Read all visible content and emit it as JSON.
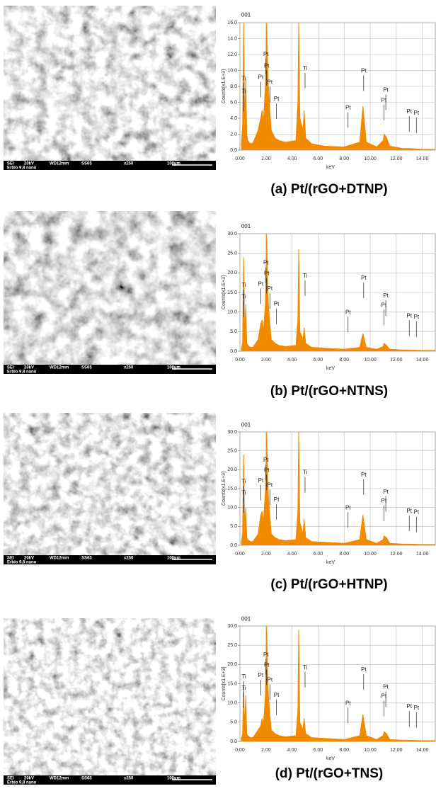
{
  "chart_data": [
    {
      "type": "line",
      "title": "(a) Pt/(rGO+DTNP)",
      "x_label": "keV",
      "y_label": "Counts[x1.E+3]",
      "annotations": [
        "001",
        "Ti",
        "Ti",
        "Pt",
        "Pt",
        "Pt",
        "Pt",
        "Pt",
        "Ti",
        "Pt",
        "Pt",
        "Pt",
        "Pt",
        "Pt",
        "Pt"
      ],
      "color": "#f28a00",
      "grid": true,
      "xlim": [
        0,
        15
      ],
      "ylim": [
        0,
        16
      ],
      "xticks": [
        {
          "value": 0,
          "label": "0.00"
        },
        {
          "value": 2,
          "label": "2.00"
        },
        {
          "value": 4,
          "label": "4.00"
        },
        {
          "value": 6,
          "label": "6.00"
        },
        {
          "value": 8,
          "label": "8.00"
        },
        {
          "value": 10,
          "label": "10.00"
        },
        {
          "value": 12,
          "label": "12.00"
        },
        {
          "value": 14,
          "label": "14.00"
        }
      ],
      "yticks": [
        {
          "value": 0,
          "label": "0.0"
        },
        {
          "value": 2,
          "label": "2.0"
        },
        {
          "value": 4,
          "label": "4.0"
        },
        {
          "value": 6,
          "label": "6.0"
        },
        {
          "value": 8,
          "label": "8.0"
        },
        {
          "value": 10,
          "label": "10.0"
        },
        {
          "value": 12,
          "label": "12.0"
        },
        {
          "value": 14,
          "label": "14.0"
        },
        {
          "value": 16,
          "label": "16.0"
        }
      ],
      "x": [
        0.1,
        0.2,
        0.28,
        0.36,
        0.45,
        0.52,
        0.6,
        0.8,
        1.0,
        1.4,
        1.6,
        1.7,
        1.8,
        1.95,
        2.05,
        2.15,
        2.25,
        2.4,
        2.7,
        3.0,
        3.5,
        4.3,
        4.45,
        4.51,
        4.6,
        4.85,
        4.93,
        5.05,
        5.5,
        6.5,
        8.0,
        9.2,
        9.44,
        9.7,
        10.5,
        11.0,
        11.07,
        11.25,
        11.5,
        12.5,
        13.0,
        14.0,
        15.0
      ],
      "values": [
        0.5,
        3,
        16,
        4,
        9,
        2,
        1.2,
        0.8,
        0.9,
        2.5,
        4,
        5,
        3.5,
        8,
        16,
        9,
        6,
        2.5,
        1.5,
        1.2,
        1.0,
        1.2,
        6,
        16,
        4,
        2.5,
        5,
        1.5,
        0.8,
        0.5,
        0.4,
        1,
        5.5,
        1,
        0.4,
        1.2,
        2,
        1.6,
        0.5,
        0.2,
        0.2,
        0.1,
        0.1
      ]
    },
    {
      "type": "line",
      "title": "(b) Pt/(rGO+NTNS)",
      "x_label": "keV",
      "y_label": "Counts[x1.E+3]",
      "annotations": [
        "001",
        "Ti",
        "Ti",
        "Pt",
        "Pt",
        "Pt",
        "Pt",
        "Pt",
        "Ti",
        "Pt",
        "Pt",
        "Pt",
        "Pt",
        "Pt",
        "Pt"
      ],
      "color": "#f28a00",
      "grid": true,
      "xlim": [
        0,
        15
      ],
      "ylim": [
        0,
        30
      ],
      "xticks": [
        {
          "value": 0,
          "label": "0.00"
        },
        {
          "value": 2,
          "label": "2.00"
        },
        {
          "value": 4,
          "label": "4.00"
        },
        {
          "value": 6,
          "label": "6.00"
        },
        {
          "value": 8,
          "label": "8.00"
        },
        {
          "value": 10,
          "label": "10.00"
        },
        {
          "value": 12,
          "label": "12.00"
        },
        {
          "value": 14,
          "label": "14.00"
        }
      ],
      "yticks": [
        {
          "value": 0,
          "label": "0.0"
        },
        {
          "value": 5,
          "label": "5.0"
        },
        {
          "value": 10,
          "label": "10.0"
        },
        {
          "value": 15,
          "label": "15.0"
        },
        {
          "value": 20,
          "label": "20.0"
        },
        {
          "value": 25,
          "label": "25.0"
        },
        {
          "value": 30,
          "label": "30.0"
        }
      ],
      "x": [
        0.1,
        0.2,
        0.28,
        0.36,
        0.45,
        0.52,
        0.6,
        0.8,
        1.0,
        1.4,
        1.6,
        1.7,
        1.8,
        1.95,
        2.05,
        2.15,
        2.25,
        2.4,
        2.7,
        3.0,
        3.5,
        4.3,
        4.45,
        4.51,
        4.6,
        4.85,
        4.93,
        5.05,
        5.5,
        6.5,
        8.0,
        9.2,
        9.44,
        9.7,
        10.5,
        11.0,
        11.07,
        11.25,
        11.5,
        12.5,
        13.0,
        14.0,
        15.0
      ],
      "values": [
        0.5,
        2,
        24,
        5,
        12,
        2,
        1.5,
        1,
        1,
        3,
        7,
        8,
        5,
        12,
        30,
        14,
        9,
        3,
        2,
        1.5,
        1.2,
        1.5,
        8,
        26,
        5,
        3,
        6,
        2,
        1,
        0.8,
        0.5,
        1,
        4.5,
        1,
        0.5,
        1.2,
        2,
        1.5,
        0.5,
        0.3,
        0.3,
        0.2,
        0.2
      ]
    },
    {
      "type": "line",
      "title": "(c) Pt/(rGO+HTNP)",
      "x_label": "keV",
      "y_label": "Counts[x1.E+3]",
      "annotations": [
        "001",
        "Ti",
        "Ti",
        "Pt",
        "Pt",
        "Pt",
        "Pt",
        "Pt",
        "Ti",
        "Pt",
        "Pt",
        "Pt",
        "Pt",
        "Pt",
        "Pt"
      ],
      "color": "#f28a00",
      "grid": true,
      "xlim": [
        0,
        15
      ],
      "ylim": [
        0,
        30
      ],
      "xticks": [
        {
          "value": 0,
          "label": "0.00"
        },
        {
          "value": 2,
          "label": "2.00"
        },
        {
          "value": 4,
          "label": "4.00"
        },
        {
          "value": 6,
          "label": "6.00"
        },
        {
          "value": 8,
          "label": "8.00"
        },
        {
          "value": 10,
          "label": "10.00"
        },
        {
          "value": 12,
          "label": "12.00"
        },
        {
          "value": 14,
          "label": "14.00"
        }
      ],
      "yticks": [
        {
          "value": 0,
          "label": "0.0"
        },
        {
          "value": 5,
          "label": "5.0"
        },
        {
          "value": 10,
          "label": "10.0"
        },
        {
          "value": 15,
          "label": "15.0"
        },
        {
          "value": 20,
          "label": "20.0"
        },
        {
          "value": 25,
          "label": "25.0"
        },
        {
          "value": 30,
          "label": "30.0"
        }
      ],
      "x": [
        0.1,
        0.2,
        0.28,
        0.36,
        0.45,
        0.52,
        0.6,
        0.8,
        1.0,
        1.4,
        1.6,
        1.7,
        1.8,
        1.95,
        2.05,
        2.15,
        2.25,
        2.4,
        2.7,
        3.0,
        3.5,
        4.3,
        4.45,
        4.51,
        4.6,
        4.85,
        4.93,
        5.05,
        5.5,
        6.5,
        8.0,
        9.2,
        9.44,
        9.7,
        10.5,
        11.0,
        11.07,
        11.25,
        11.5,
        12.5,
        13.0,
        14.0,
        15.0
      ],
      "values": [
        0.5,
        3,
        24,
        5,
        10,
        2,
        1.5,
        1,
        1,
        3,
        8,
        9,
        6,
        14,
        30,
        15,
        10,
        3,
        2,
        1.5,
        1.2,
        1.5,
        9,
        30,
        6,
        3,
        7,
        2,
        1,
        0.8,
        0.5,
        1.5,
        8,
        1.5,
        0.5,
        1.5,
        2.5,
        2,
        0.5,
        0.3,
        0.3,
        0.2,
        0.2
      ]
    },
    {
      "type": "line",
      "title": "(d) Pt/(rGO+TNS)",
      "x_label": "keV",
      "y_label": "Counts[x1.E+3]",
      "annotations": [
        "001",
        "Ti",
        "Ti",
        "Pt",
        "Pt",
        "Pt",
        "Pt",
        "Pt",
        "Ti",
        "Pt",
        "Pt",
        "Pt",
        "Pt",
        "Pt",
        "Pt"
      ],
      "color": "#f28a00",
      "grid": true,
      "xlim": [
        0,
        15
      ],
      "ylim": [
        0,
        30
      ],
      "xticks": [
        {
          "value": 0,
          "label": "0.00"
        },
        {
          "value": 2,
          "label": "2.00"
        },
        {
          "value": 4,
          "label": "4.00"
        },
        {
          "value": 6,
          "label": "6.00"
        },
        {
          "value": 8,
          "label": "8.00"
        },
        {
          "value": 10,
          "label": "10.00"
        },
        {
          "value": 12,
          "label": "12.00"
        },
        {
          "value": 14,
          "label": "14.00"
        }
      ],
      "yticks": [
        {
          "value": 0,
          "label": "0.0"
        },
        {
          "value": 5,
          "label": "5.0"
        },
        {
          "value": 10,
          "label": "10.0"
        },
        {
          "value": 15,
          "label": "15.0"
        },
        {
          "value": 20,
          "label": "20.0"
        },
        {
          "value": 25,
          "label": "25.0"
        },
        {
          "value": 30,
          "label": "30.0"
        }
      ],
      "x": [
        0.1,
        0.2,
        0.28,
        0.36,
        0.45,
        0.52,
        0.6,
        0.8,
        1.0,
        1.4,
        1.6,
        1.7,
        1.8,
        1.95,
        2.05,
        2.15,
        2.25,
        2.4,
        2.7,
        3.0,
        3.5,
        4.3,
        4.45,
        4.51,
        4.6,
        4.85,
        4.93,
        5.05,
        5.5,
        6.5,
        8.0,
        9.2,
        9.44,
        9.7,
        10.5,
        11.0,
        11.07,
        11.25,
        11.5,
        12.5,
        13.0,
        14.0,
        15.0
      ],
      "values": [
        0.5,
        2,
        13,
        4,
        12,
        2,
        1.5,
        1,
        1,
        3,
        4,
        6,
        4,
        12,
        30,
        14,
        9,
        3,
        2,
        1.5,
        1.2,
        1.5,
        8,
        29,
        5,
        3,
        6,
        2,
        1,
        0.8,
        0.5,
        1.5,
        7,
        1.5,
        0.5,
        1.5,
        2.5,
        2,
        0.5,
        0.3,
        0.3,
        0.2,
        0.2
      ]
    }
  ],
  "sem_images": [
    {
      "labels": [
        "SEI",
        "20kV",
        "WD12mm",
        "SS65",
        "x250",
        "100µm",
        "Erbio 9,8 nano"
      ]
    },
    {
      "labels": [
        "SEI",
        "20kV",
        "WD12mm",
        "SS65",
        "x250",
        "100µm",
        "Erbio 9,8 nano"
      ]
    },
    {
      "labels": [
        "SEI",
        "20kV",
        "WD12mm",
        "SS65",
        "x250",
        "100µm",
        "Erbio 9,8 nano"
      ]
    },
    {
      "labels": [
        "SEI",
        "20kV",
        "WD12mm",
        "SS65",
        "x250",
        "100µm",
        "Erbio 9,8 nano"
      ]
    }
  ]
}
